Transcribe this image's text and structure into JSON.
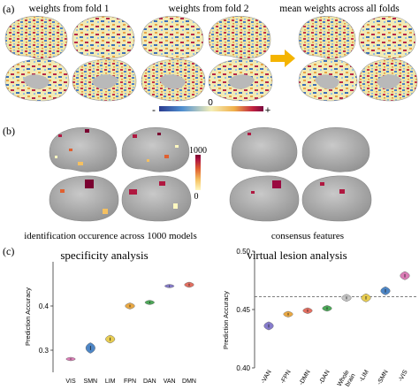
{
  "panel_a": {
    "label": "(a)",
    "fold1_title": "weights from fold 1",
    "fold2_title": "weights from fold 2",
    "mean_title": "mean weights across all folds",
    "colorbar": {
      "min_label": "-",
      "mid_label": "0",
      "max_label": "+",
      "colors": [
        "#2a3a8f",
        "#4f8fd0",
        "#f5efb8",
        "#f0b04a",
        "#c02040",
        "#7a0a40"
      ]
    }
  },
  "panel_b": {
    "label": "(b)",
    "left_caption": "identification occurence across 1000 models",
    "right_caption": "consensus features",
    "colorbar_max": "1000",
    "colorbar_min": "0",
    "colors": [
      "#fff8c0",
      "#f5c060",
      "#e06030",
      "#b01840",
      "#7a0030"
    ]
  },
  "panel_c": {
    "label": "(c)"
  },
  "chart_data": [
    {
      "type": "violin",
      "title": "specificity analysis",
      "xlabel": "",
      "ylabel": "Prediction Accuracy",
      "categories": [
        "VIS",
        "SMN",
        "LIM",
        "FPN",
        "DAN",
        "VAN",
        "DMN"
      ],
      "values": [
        0.28,
        0.305,
        0.325,
        0.4,
        0.408,
        0.445,
        0.448
      ],
      "spread": [
        0.004,
        0.012,
        0.009,
        0.007,
        0.005,
        0.004,
        0.006
      ],
      "colors": [
        "#d96fb0",
        "#3a79c0",
        "#e6c840",
        "#e8a030",
        "#3aa048",
        "#7a6ec8",
        "#e06050"
      ],
      "ylim": [
        0.25,
        0.5
      ],
      "yticks": [
        "0.3",
        "0.4"
      ],
      "ytick_values": [
        0.3,
        0.4
      ],
      "grid": false
    },
    {
      "type": "violin",
      "title": "virtual lesion analysis",
      "xlabel": "",
      "ylabel": "Prediction Accuracy",
      "categories": [
        "-VAN",
        "-FPN",
        "-DMN",
        "-DAN",
        "Whole\nbrain",
        "-LIM",
        "-SMN",
        "-VIS"
      ],
      "values": [
        0.436,
        0.446,
        0.449,
        0.451,
        0.46,
        0.46,
        0.466,
        0.479
      ],
      "spread": [
        0.0035,
        0.0025,
        0.0025,
        0.0025,
        0.003,
        0.0035,
        0.0035,
        0.0035
      ],
      "colors": [
        "#7a6ec8",
        "#e8a030",
        "#e06050",
        "#3aa048",
        "#c0c0c0",
        "#e6c840",
        "#3a79c0",
        "#d96fb0"
      ],
      "ylim": [
        0.4,
        0.5
      ],
      "yticks": [
        "0.40",
        "0.45",
        "0.50"
      ],
      "ytick_values": [
        0.4,
        0.45,
        0.5
      ],
      "reference_line": 0.461,
      "grid": false
    }
  ]
}
